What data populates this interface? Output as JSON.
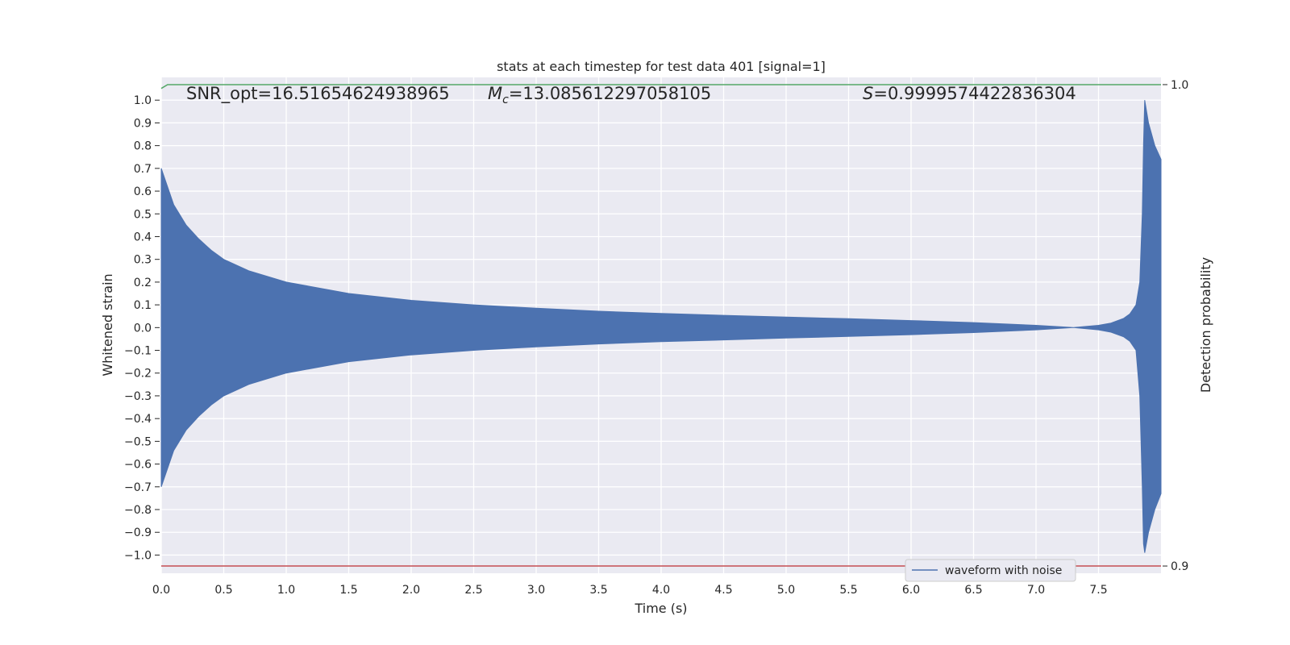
{
  "chart_data": {
    "type": "line",
    "title": "stats at each timestep for test data 401 [signal=1]",
    "xlabel": "Time (s)",
    "ylabel": "Whitened strain",
    "ylabel_right": "Detection probability",
    "xlim": [
      0.0,
      8.0
    ],
    "ylim": [
      -1.08,
      1.1
    ],
    "ylim_right": [
      0.8985,
      1.0015
    ],
    "x_ticks": [
      "0.0",
      "0.5",
      "1.0",
      "1.5",
      "2.0",
      "2.5",
      "3.0",
      "3.5",
      "4.0",
      "4.5",
      "5.0",
      "5.5",
      "6.0",
      "6.5",
      "7.0",
      "7.5"
    ],
    "y_ticks": [
      "1.0",
      "0.9",
      "0.8",
      "0.7",
      "0.6",
      "0.5",
      "0.4",
      "0.3",
      "0.2",
      "0.1",
      "0.0",
      "−0.1",
      "−0.2",
      "−0.3",
      "−0.4",
      "−0.5",
      "−0.6",
      "−0.7",
      "−0.8",
      "−0.9",
      "−1.0"
    ],
    "y_ticks_right": [
      "1.0",
      "0.9"
    ],
    "grid": true,
    "background": "#eaeaf2",
    "annotations": {
      "snr": "SNR_opt=16.51654624938965",
      "mc_symbol": "M",
      "mc_sub": "c",
      "mc_value": "=13.085612297058105",
      "s_symbol": "S",
      "s_value": "=0.9999574422836304"
    },
    "series": [
      {
        "name": "waveform with noise",
        "color": "#4c72b0",
        "envelope_x": [
          0.0,
          0.1,
          0.2,
          0.3,
          0.4,
          0.5,
          0.7,
          1.0,
          1.5,
          2.0,
          2.5,
          3.0,
          3.5,
          4.0,
          4.5,
          5.0,
          5.5,
          6.0,
          6.5,
          7.0,
          7.3,
          7.5,
          7.6,
          7.7,
          7.75,
          7.8,
          7.83,
          7.85,
          7.86,
          7.87,
          7.9,
          7.95,
          8.0
        ],
        "envelope_top": [
          0.7,
          0.54,
          0.45,
          0.39,
          0.34,
          0.3,
          0.25,
          0.2,
          0.15,
          0.12,
          0.1,
          0.085,
          0.072,
          0.062,
          0.054,
          0.046,
          0.039,
          0.031,
          0.022,
          0.01,
          0.0,
          0.01,
          0.02,
          0.04,
          0.06,
          0.1,
          0.2,
          0.5,
          0.8,
          1.0,
          0.9,
          0.8,
          0.74
        ],
        "envelope_bottom": [
          -0.7,
          -0.54,
          -0.45,
          -0.39,
          -0.34,
          -0.3,
          -0.25,
          -0.2,
          -0.15,
          -0.12,
          -0.1,
          -0.085,
          -0.072,
          -0.062,
          -0.054,
          -0.046,
          -0.039,
          -0.031,
          -0.022,
          -0.01,
          0.0,
          -0.01,
          -0.02,
          -0.04,
          -0.06,
          -0.1,
          -0.3,
          -0.7,
          -0.95,
          -0.99,
          -0.9,
          -0.8,
          -0.73
        ]
      },
      {
        "axis": "right",
        "color": "#55a868",
        "x": [
          0.0,
          0.05,
          0.1,
          8.0
        ],
        "values": [
          0.9992,
          1.0,
          1.0,
          1.0
        ]
      },
      {
        "axis": "right",
        "color": "#c44e52",
        "x": [
          0.0,
          8.0
        ],
        "values": [
          0.9,
          0.9
        ]
      }
    ],
    "legend": {
      "placement": "lower-right",
      "entries": [
        "waveform with noise"
      ]
    }
  }
}
